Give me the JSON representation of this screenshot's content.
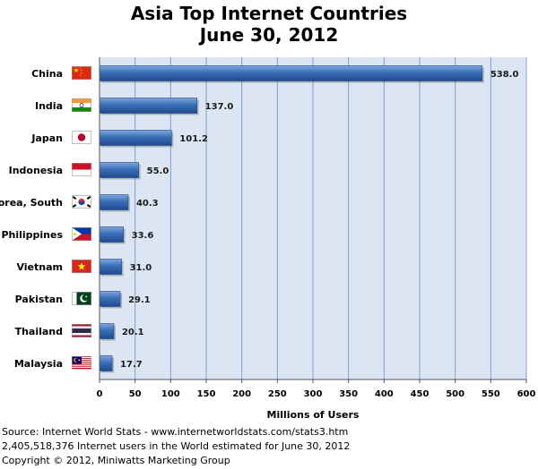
{
  "chart_data": {
    "type": "bar",
    "orientation": "horizontal",
    "title": [
      "Asia Top Internet Countries",
      "June 30, 2012"
    ],
    "categories": [
      "China",
      "India",
      "Japan",
      "Indonesia",
      "Korea, South",
      "Philippines",
      "Vietnam",
      "Pakistan",
      "Thailand",
      "Malaysia"
    ],
    "values": [
      538.0,
      137.0,
      101.2,
      55.0,
      40.3,
      33.6,
      31.0,
      29.1,
      20.1,
      17.7
    ],
    "value_labels": [
      "538.0",
      "137.0",
      "101.2",
      "55.0",
      "40.3",
      "33.6",
      "31.0",
      "29.1",
      "20.1",
      "17.7"
    ],
    "flags": [
      "flag-china-icon",
      "flag-india-icon",
      "flag-japan-icon",
      "flag-indonesia-icon",
      "flag-korea-south-icon",
      "flag-philippines-icon",
      "flag-vietnam-icon",
      "flag-pakistan-icon",
      "flag-thailand-icon",
      "flag-malaysia-icon"
    ],
    "xlabel": "Millions of Users",
    "ylabel": "",
    "xlim": [
      0,
      600
    ],
    "xticks": [
      0,
      50,
      100,
      150,
      200,
      250,
      300,
      350,
      400,
      450,
      500,
      550,
      600
    ],
    "grid": "vertical",
    "legend": "none",
    "colors": {
      "bar": "#3a6fb8",
      "bar_dark": "#1f4a8a",
      "bar_light": "#7fa6dc",
      "plot_bg": "#dce6f2",
      "grid": "#7f9fcf"
    }
  },
  "footer": {
    "source": "Source: Internet World Stats - www.internetworldstats.com/stats3.htm",
    "estimate": "2,405,518,376 Internet users in the World estimated for June 30, 2012",
    "copyright": "Copyright © 2012, Miniwatts Marketing Group"
  }
}
